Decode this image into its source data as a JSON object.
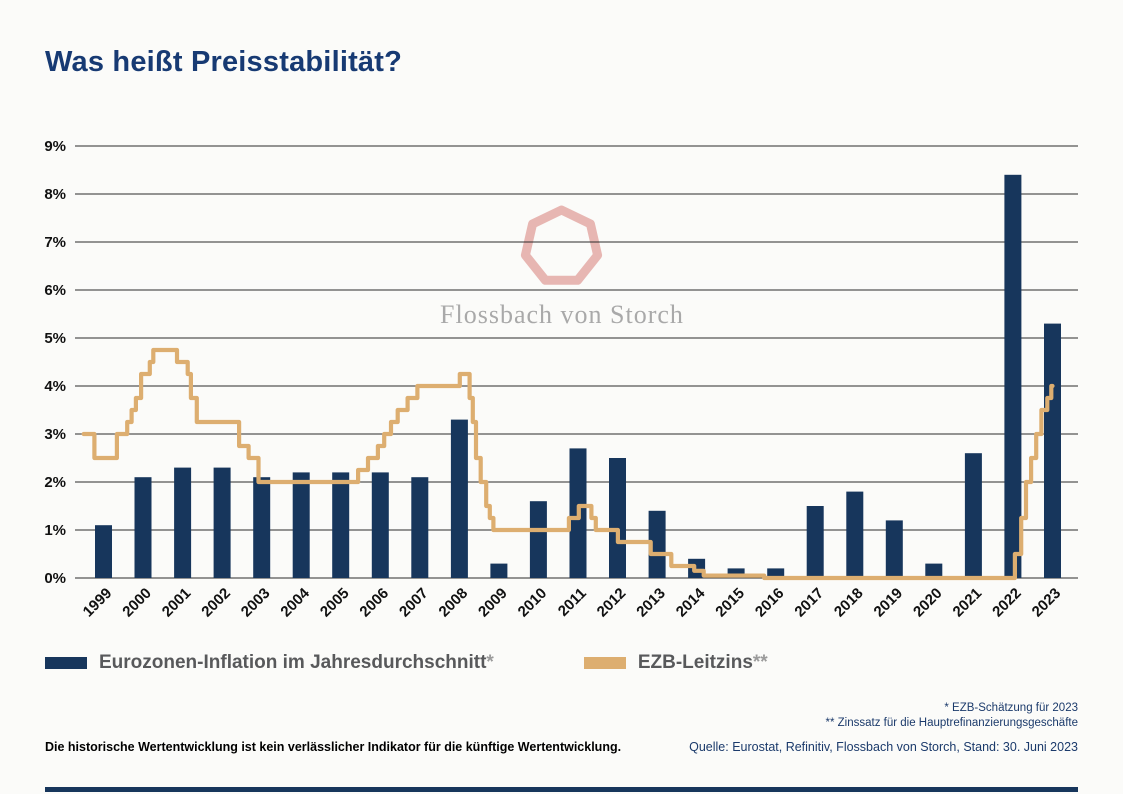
{
  "page": {
    "title": "Was heißt Preisstabilität?",
    "watermark_text": "Flossbach von Storch",
    "footnote1": "* EZB-Schätzung für 2023",
    "footnote2": "** Zinssatz für die Hauptrefinanzierungsgeschäfte",
    "source": "Quelle: Eurostat, Refinitiv, Flossbach von Storch, Stand: 30. Juni 2023",
    "disclaimer": "Die historische Wertentwicklung ist kein verlässlicher Indikator für die künftige Wertentwicklung."
  },
  "legend": {
    "series1_label": "Eurozonen-Inflation im Jahresdurchschnitt",
    "series1_mark": "*",
    "series2_label": "EZB-Leitzins",
    "series2_mark": "**"
  },
  "colors": {
    "bar": "#17365c",
    "line": "#ddae70",
    "grid": "#2b2b2b",
    "axis_text": "#111111",
    "title": "#173a73",
    "footnote": "#1b3a6b",
    "watermark_shape": "#e7b6b2",
    "watermark_text": "#a9a9a9",
    "background": "#fbfbf9"
  },
  "chart_data": {
    "type": "bar",
    "title": "Was heißt Preisstabilität?",
    "categories": [
      "1999",
      "2000",
      "2001",
      "2002",
      "2003",
      "2004",
      "2005",
      "2006",
      "2007",
      "2008",
      "2009",
      "2010",
      "2011",
      "2012",
      "2013",
      "2014",
      "2015",
      "2016",
      "2017",
      "2018",
      "2019",
      "2020",
      "2021",
      "2022",
      "2023"
    ],
    "series": [
      {
        "name": "Eurozonen-Inflation im Jahresdurchschnitt*",
        "type": "bar",
        "unit": "%",
        "values": [
          1.1,
          2.1,
          2.3,
          2.3,
          2.1,
          2.2,
          2.2,
          2.2,
          2.1,
          3.3,
          0.3,
          1.6,
          2.7,
          2.5,
          1.4,
          0.4,
          0.2,
          0.2,
          1.5,
          1.8,
          1.2,
          0.3,
          2.6,
          8.4,
          5.3
        ]
      },
      {
        "name": "EZB-Leitzins**",
        "type": "step-line",
        "unit": "%",
        "points_t_v": [
          [
            1999.0,
            3.0
          ],
          [
            1999.27,
            2.5
          ],
          [
            1999.84,
            3.0
          ],
          [
            2000.1,
            3.25
          ],
          [
            2000.21,
            3.5
          ],
          [
            2000.32,
            3.75
          ],
          [
            2000.45,
            4.25
          ],
          [
            2000.67,
            4.5
          ],
          [
            2000.76,
            4.75
          ],
          [
            2001.36,
            4.5
          ],
          [
            2001.63,
            4.25
          ],
          [
            2001.71,
            3.75
          ],
          [
            2001.86,
            3.25
          ],
          [
            2002.93,
            2.75
          ],
          [
            2003.17,
            2.5
          ],
          [
            2003.42,
            2.0
          ],
          [
            2005.94,
            2.25
          ],
          [
            2006.19,
            2.5
          ],
          [
            2006.44,
            2.75
          ],
          [
            2006.6,
            3.0
          ],
          [
            2006.77,
            3.25
          ],
          [
            2006.94,
            3.5
          ],
          [
            2007.19,
            3.75
          ],
          [
            2007.44,
            4.0
          ],
          [
            2008.51,
            4.25
          ],
          [
            2008.76,
            3.75
          ],
          [
            2008.84,
            3.25
          ],
          [
            2008.92,
            2.5
          ],
          [
            2009.04,
            2.0
          ],
          [
            2009.18,
            1.5
          ],
          [
            2009.27,
            1.25
          ],
          [
            2009.36,
            1.0
          ],
          [
            2011.27,
            1.25
          ],
          [
            2011.52,
            1.5
          ],
          [
            2011.84,
            1.25
          ],
          [
            2011.95,
            1.0
          ],
          [
            2012.51,
            0.75
          ],
          [
            2013.34,
            0.5
          ],
          [
            2013.86,
            0.25
          ],
          [
            2014.44,
            0.15
          ],
          [
            2014.68,
            0.05
          ],
          [
            2016.21,
            0.0
          ],
          [
            2022.55,
            0.5
          ],
          [
            2022.71,
            1.25
          ],
          [
            2022.83,
            2.0
          ],
          [
            2022.96,
            2.5
          ],
          [
            2023.09,
            3.0
          ],
          [
            2023.22,
            3.5
          ],
          [
            2023.37,
            3.75
          ],
          [
            2023.47,
            4.0
          ]
        ],
        "t_end": 2023.5
      }
    ],
    "ylim": [
      0,
      9
    ],
    "ytick_step": 1,
    "ytick_suffix": "%",
    "grid": true,
    "legend_position": "bottom"
  }
}
